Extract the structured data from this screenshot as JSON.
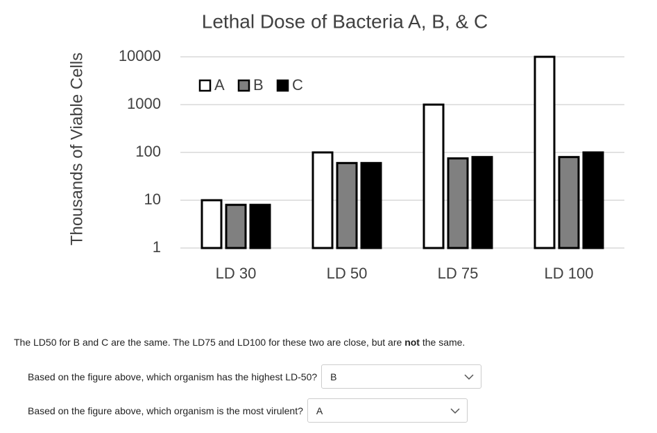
{
  "chart_data": {
    "type": "bar",
    "title": "Lethal Dose of Bacteria A, B, & C",
    "y_label": "Thousands of Viable Cells",
    "categories": [
      "LD 30",
      "LD 50",
      "LD 75",
      "LD 100"
    ],
    "series": [
      {
        "name": "A",
        "color": "#ffffff",
        "values": [
          10,
          100,
          1000,
          10000
        ]
      },
      {
        "name": "B",
        "color": "#808080",
        "values": [
          8,
          60,
          75,
          80
        ]
      },
      {
        "name": "C",
        "color": "#000000",
        "values": [
          8,
          60,
          80,
          100
        ]
      }
    ],
    "ylim": [
      1,
      10000
    ],
    "yticks": [
      1,
      10,
      100,
      1000,
      10000
    ],
    "log_scale": true,
    "grid": true,
    "legend": "top-left"
  },
  "page": {
    "note": [
      "The LD50 for B and C are the same. The LD75 and LD100 for these two are close, but are ",
      "not",
      " the same."
    ],
    "questions": [
      {
        "prompt": "Based on the figure above, which organism has the highest LD-50?",
        "answer": "B"
      },
      {
        "prompt": "Based on the figure above, which organism is the most virulent?",
        "answer": "A"
      }
    ]
  }
}
